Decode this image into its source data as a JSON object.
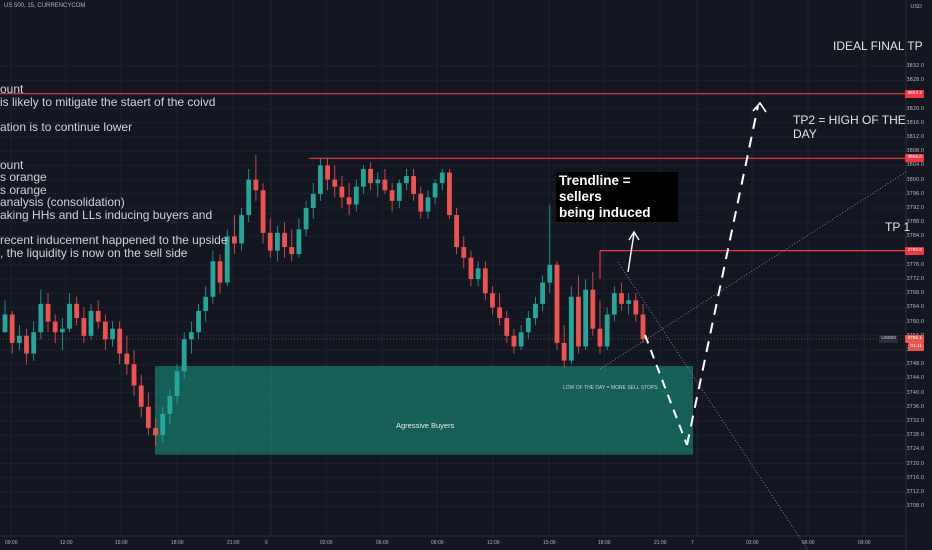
{
  "header": {
    "symbol": "US 500, 15, CURRENCYCOM"
  },
  "axis": {
    "currency": "USD"
  },
  "colors": {
    "background": "#131722",
    "up": "#26a69a",
    "down": "#ef5350",
    "zone": "#1b8a79",
    "tp_line": "#f23645"
  },
  "chart_data": {
    "type": "candlestick",
    "symbol": "US 500",
    "interval": "15",
    "source": "CURRENCYCOM",
    "y_ticks": [
      3832.0,
      3828.0,
      3820.0,
      3816.0,
      3812.0,
      3808.0,
      3804.0,
      3800.0,
      3796.0,
      3792.0,
      3788.0,
      3784.0,
      3776.0,
      3772.0,
      3768.0,
      3764.0,
      3760.0,
      3756.0,
      3752.0,
      3748.0,
      3744.0,
      3740.0,
      3736.0,
      3732.0,
      3728.0,
      3724.0,
      3720.0,
      3716.0,
      3712.0,
      3708.0
    ],
    "x_ticks": [
      "09:00",
      "12:00",
      "15:00",
      "18:00",
      "21:00",
      "6",
      "03:00",
      "06:00",
      "09:00",
      "12:00",
      "15:00",
      "18:00",
      "21:00",
      "7",
      "03:00",
      "06:00",
      "09:00"
    ],
    "price_tags": [
      {
        "label": "3824.2",
        "value": 3824.2
      },
      {
        "label": "3806.0",
        "value": 3806.0
      },
      {
        "label": "3780.0",
        "value": 3780.0
      },
      {
        "label": "US500",
        "value": 3755.1
      },
      {
        "label": "3755.1",
        "value": 3755.1
      },
      {
        "label": "01:11",
        "value": 3753.5
      }
    ],
    "levels": [
      {
        "name": "IDEAL FINAL TP",
        "value": 3824.2
      },
      {
        "name": "TP2 = HIGH OF THE DAY",
        "value": 3806.0
      },
      {
        "name": "TP 1",
        "value": 3780.0
      }
    ],
    "zone": {
      "label": "Agressive Buyers",
      "from": 3722.5,
      "to": 3747.5
    },
    "candles": [
      [
        3757.0,
        3766.0,
        3757.0,
        3762.0
      ],
      [
        3762.0,
        3763.0,
        3751.0,
        3754.0
      ],
      [
        3754.0,
        3759.0,
        3752.0,
        3756.0
      ],
      [
        3756.0,
        3758.0,
        3748.0,
        3751.0
      ],
      [
        3751.0,
        3760.0,
        3749.0,
        3757.0
      ],
      [
        3757.0,
        3769.0,
        3755.0,
        3765.0
      ],
      [
        3765.0,
        3768.0,
        3757.0,
        3760.0
      ],
      [
        3760.0,
        3762.0,
        3754.0,
        3757.0
      ],
      [
        3757.0,
        3761.0,
        3752.0,
        3758.0
      ],
      [
        3758.0,
        3768.0,
        3757.0,
        3765.0
      ],
      [
        3765.0,
        3767.0,
        3759.0,
        3761.0
      ],
      [
        3761.0,
        3764.0,
        3754.0,
        3756.0
      ],
      [
        3756.0,
        3765.0,
        3755.0,
        3763.0
      ],
      [
        3763.0,
        3766.0,
        3758.0,
        3760.0
      ],
      [
        3760.0,
        3762.0,
        3752.0,
        3755.0
      ],
      [
        3755.0,
        3760.0,
        3753.0,
        3758.0
      ],
      [
        3758.0,
        3760.0,
        3748.0,
        3751.0
      ],
      [
        3751.0,
        3756.0,
        3745.0,
        3748.0
      ],
      [
        3748.0,
        3752.0,
        3739.0,
        3742.0
      ],
      [
        3742.0,
        3745.0,
        3733.0,
        3736.0
      ],
      [
        3736.0,
        3740.0,
        3728.0,
        3730.0
      ],
      [
        3730.0,
        3733.0,
        3725.0,
        3728.0
      ],
      [
        3728.0,
        3736.0,
        3726.0,
        3734.0
      ],
      [
        3734.0,
        3741.0,
        3731.0,
        3739.0
      ],
      [
        3739.0,
        3748.0,
        3737.0,
        3746.0
      ],
      [
        3746.0,
        3757.0,
        3744.0,
        3755.0
      ],
      [
        3755.0,
        3760.0,
        3751.0,
        3757.0
      ],
      [
        3757.0,
        3765.0,
        3755.0,
        3763.0
      ],
      [
        3763.0,
        3770.0,
        3760.0,
        3767.0
      ],
      [
        3767.0,
        3780.0,
        3765.0,
        3777.0
      ],
      [
        3777.0,
        3779.0,
        3768.0,
        3771.0
      ],
      [
        3771.0,
        3786.0,
        3770.0,
        3784.0
      ],
      [
        3784.0,
        3790.0,
        3779.0,
        3782.0
      ],
      [
        3782.0,
        3792.0,
        3780.0,
        3790.0
      ],
      [
        3790.0,
        3803.0,
        3788.0,
        3800.0
      ],
      [
        3800.0,
        3807.0,
        3794.0,
        3797.0
      ],
      [
        3797.0,
        3799.0,
        3782.0,
        3785.0
      ],
      [
        3785.0,
        3789.0,
        3778.0,
        3780.0
      ],
      [
        3780.0,
        3787.0,
        3777.0,
        3785.0
      ],
      [
        3785.0,
        3788.0,
        3778.0,
        3781.0
      ],
      [
        3781.0,
        3786.0,
        3777.0,
        3779.0
      ],
      [
        3779.0,
        3789.0,
        3778.0,
        3786.0
      ],
      [
        3786.0,
        3794.0,
        3784.0,
        3792.0
      ],
      [
        3792.0,
        3799.0,
        3789.0,
        3796.0
      ],
      [
        3796.0,
        3806.0,
        3794.0,
        3804.0
      ],
      [
        3804.0,
        3806.0,
        3797.0,
        3800.0
      ],
      [
        3800.0,
        3804.0,
        3795.0,
        3798.0
      ],
      [
        3798.0,
        3801.0,
        3792.0,
        3795.0
      ],
      [
        3795.0,
        3799.0,
        3790.0,
        3793.0
      ],
      [
        3793.0,
        3800.0,
        3791.0,
        3798.0
      ],
      [
        3798.0,
        3804.0,
        3796.0,
        3803.0
      ],
      [
        3803.0,
        3805.0,
        3797.0,
        3799.0
      ],
      [
        3799.0,
        3802.0,
        3795.0,
        3800.0
      ],
      [
        3800.0,
        3803.0,
        3796.0,
        3797.0
      ],
      [
        3797.0,
        3799.0,
        3791.0,
        3794.0
      ],
      [
        3794.0,
        3800.0,
        3792.0,
        3799.0
      ],
      [
        3799.0,
        3803.0,
        3797.0,
        3801.0
      ],
      [
        3801.0,
        3803.0,
        3794.0,
        3796.0
      ],
      [
        3796.0,
        3798.0,
        3789.0,
        3791.0
      ],
      [
        3791.0,
        3797.0,
        3789.0,
        3795.0
      ],
      [
        3795.0,
        3800.0,
        3793.0,
        3799.0
      ],
      [
        3799.0,
        3803.0,
        3797.0,
        3802.0
      ],
      [
        3802.0,
        3803.0,
        3789.0,
        3790.0
      ],
      [
        3790.0,
        3792.0,
        3779.0,
        3781.0
      ],
      [
        3781.0,
        3784.0,
        3775.0,
        3778.0
      ],
      [
        3778.0,
        3780.0,
        3770.0,
        3772.0
      ],
      [
        3772.0,
        3777.0,
        3770.0,
        3775.0
      ],
      [
        3775.0,
        3777.0,
        3766.0,
        3768.0
      ],
      [
        3768.0,
        3770.0,
        3762.0,
        3764.0
      ],
      [
        3764.0,
        3768.0,
        3759.0,
        3761.0
      ],
      [
        3761.0,
        3763.0,
        3754.0,
        3756.0
      ],
      [
        3756.0,
        3758.0,
        3751.0,
        3753.0
      ],
      [
        3753.0,
        3759.0,
        3752.0,
        3757.0
      ],
      [
        3757.0,
        3763.0,
        3755.0,
        3761.0
      ],
      [
        3761.0,
        3767.0,
        3759.0,
        3765.0
      ],
      [
        3765.0,
        3773.0,
        3763.0,
        3771.0
      ],
      [
        3771.0,
        3793.0,
        3768.0,
        3776.0
      ],
      [
        3776.0,
        3777.0,
        3752.0,
        3754.0
      ],
      [
        3754.0,
        3759.0,
        3747.0,
        3749.0
      ],
      [
        3749.0,
        3770.0,
        3748.0,
        3767.0
      ],
      [
        3767.0,
        3773.0,
        3751.0,
        3753.0
      ],
      [
        3753.0,
        3772.0,
        3752.0,
        3769.0
      ],
      [
        3769.0,
        3774.0,
        3756.0,
        3758.0
      ],
      [
        3758.0,
        3766.0,
        3751.0,
        3753.0
      ],
      [
        3753.0,
        3764.0,
        3752.0,
        3762.0
      ],
      [
        3762.0,
        3770.0,
        3760.0,
        3768.0
      ],
      [
        3768.0,
        3771.0,
        3763.0,
        3765.0
      ],
      [
        3765.0,
        3768.0,
        3762.0,
        3766.0
      ],
      [
        3766.0,
        3768.0,
        3760.0,
        3762.0
      ],
      [
        3762.0,
        3765.0,
        3754.0,
        3755.1
      ]
    ]
  },
  "annotations": {
    "lines": [
      "ount",
      "is likely to mitigate the staert of the coivd",
      "",
      "ation is to continue lower",
      "",
      "",
      "ount",
      "s orange",
      "s orange",
      " analysis (consolidation)",
      "aking HHs and LLs inducing buyers and",
      "",
      "recent inducement happened to the upside",
      ", the liquidity is now on the sell side"
    ],
    "trendline_note": [
      "Trendline = sellers",
      "being induced"
    ],
    "low_note": "LOW OF THE DAY = MORE SELL STOPS"
  }
}
